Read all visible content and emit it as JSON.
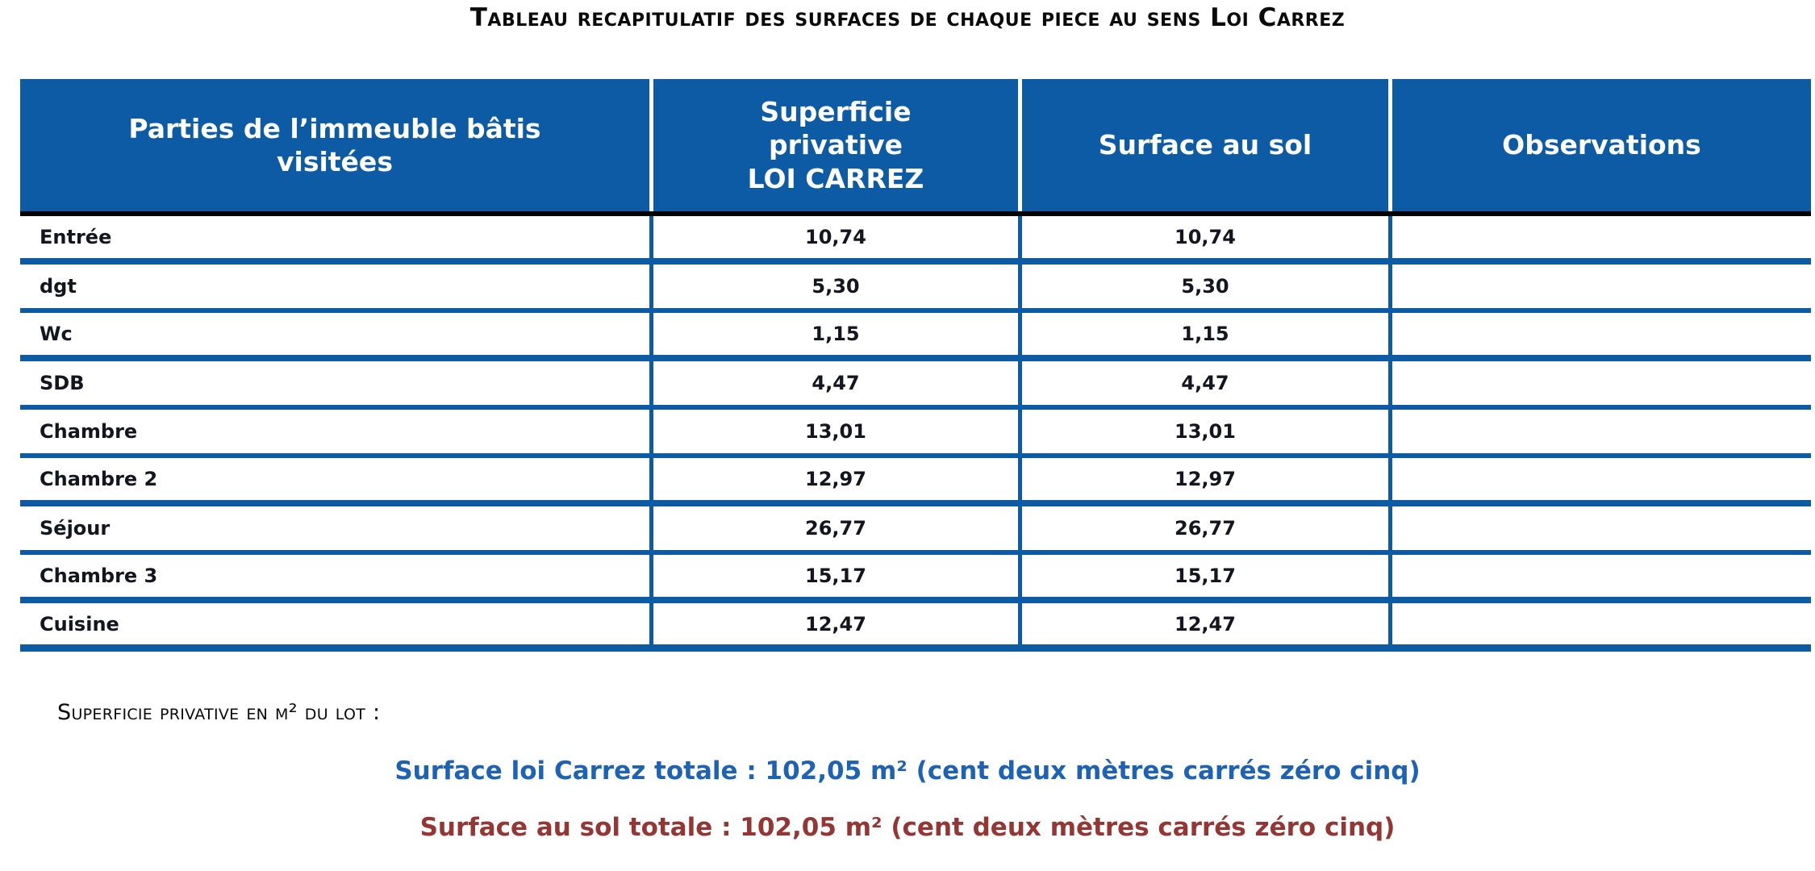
{
  "page": {
    "title": "Tableau recapitulatif des surfaces de chaque piece au sens Loi Carrez"
  },
  "table": {
    "headers": {
      "parties": "Parties de l’immeuble bâtis\nvisitées",
      "superficie_privative": "Superficie\nprivative\nLOI CARREZ",
      "surface_au_sol": "Surface au sol",
      "observations": "Observations"
    },
    "rows": [
      {
        "piece": "Entrée",
        "superficie_privative": "10,74",
        "surface_au_sol": "10,74",
        "observation": ""
      },
      {
        "piece": "dgt",
        "superficie_privative": "5,30",
        "surface_au_sol": "5,30",
        "observation": ""
      },
      {
        "piece": "Wc",
        "superficie_privative": "1,15",
        "surface_au_sol": "1,15",
        "observation": ""
      },
      {
        "piece": "SDB",
        "superficie_privative": "4,47",
        "surface_au_sol": "4,47",
        "observation": ""
      },
      {
        "piece": "Chambre",
        "superficie_privative": "13,01",
        "surface_au_sol": "13,01",
        "observation": ""
      },
      {
        "piece": "Chambre 2",
        "superficie_privative": "12,97",
        "surface_au_sol": "12,97",
        "observation": ""
      },
      {
        "piece": "Séjour",
        "superficie_privative": "26,77",
        "surface_au_sol": "26,77",
        "observation": ""
      },
      {
        "piece": "Chambre 3",
        "superficie_privative": "15,17",
        "surface_au_sol": "15,17",
        "observation": ""
      },
      {
        "piece": "Cuisine",
        "superficie_privative": "12,47",
        "surface_au_sol": "12,47",
        "observation": ""
      }
    ]
  },
  "summary": {
    "label": "Superficie privative en m² du lot :",
    "carrez_total": "Surface loi Carrez totale : 102,05 m² (cent deux mètres carrés zéro cinq)",
    "sol_total": "Surface au sol totale : 102,05 m² (cent deux mètres carrés zéro cinq)"
  },
  "colors": {
    "header_background": "#0d5ba5",
    "header_text": "#ffffff",
    "grid_lines": "#0d5ba5",
    "header_bottom_border": "#000000",
    "carrez_total_text": "#1e62b4",
    "sol_total_text": "#943634"
  }
}
